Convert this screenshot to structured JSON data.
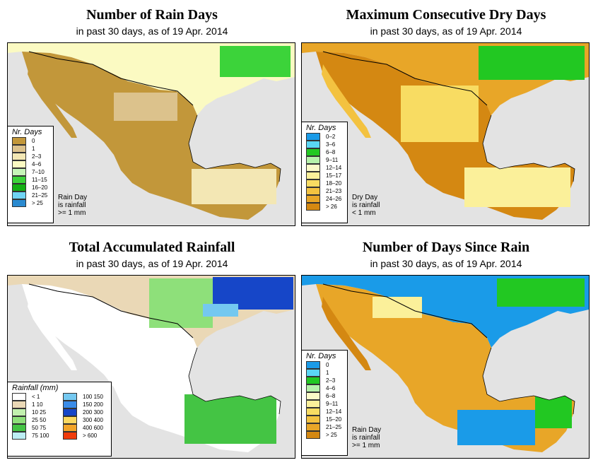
{
  "panels": [
    {
      "title": "Number of Rain Days",
      "subtitle": "in past 30 days, as of  19 Apr. 2014",
      "legend_title": "Nr. Days",
      "legend": [
        {
          "label": "0",
          "color": "#c2973a"
        },
        {
          "label": "1",
          "color": "#dcc28c"
        },
        {
          "label": "2–3",
          "color": "#f3e7b4"
        },
        {
          "label": "4–6",
          "color": "#fbfac2"
        },
        {
          "label": "7–10",
          "color": "#c6f5b8"
        },
        {
          "label": "11–15",
          "color": "#3cd33a"
        },
        {
          "label": "16–20",
          "color": "#14b014"
        },
        {
          "label": "21–25",
          "color": "#70d4f4"
        },
        {
          "label": "> 25",
          "color": "#2a8ad0"
        }
      ],
      "note": [
        "Rain Day",
        "is rainfall",
        ">= 1 mm"
      ]
    },
    {
      "title": "Maximum Consecutive Dry Days",
      "subtitle": "in past 30 days, as of  19 Apr. 2014",
      "legend_title": "Nr. Days",
      "legend": [
        {
          "label": "0–2",
          "color": "#1a9be8"
        },
        {
          "label": "3–6",
          "color": "#5ad6f4"
        },
        {
          "label": "6–8",
          "color": "#22c822"
        },
        {
          "label": "9–11",
          "color": "#b6f2aa"
        },
        {
          "label": "12–14",
          "color": "#fbfac8"
        },
        {
          "label": "15–17",
          "color": "#fbf09a"
        },
        {
          "label": "18–20",
          "color": "#f8dc62"
        },
        {
          "label": "21–23",
          "color": "#f3c240"
        },
        {
          "label": "24–26",
          "color": "#e8a628"
        },
        {
          "label": "> 26",
          "color": "#d48812"
        }
      ],
      "note": [
        "Dry Day",
        "is rainfall",
        "< 1 mm"
      ]
    },
    {
      "title": "Total Accumulated Rainfall",
      "subtitle": "in past 30 days, as of  19 Apr. 2014",
      "legend_title": "Rainfall (mm)",
      "legend_left": [
        {
          "label": "< 1",
          "color": "#ffffff"
        },
        {
          "label": "1     10",
          "color": "#ead8b6"
        },
        {
          "label": "10    25",
          "color": "#c2f0ae"
        },
        {
          "label": "25    50",
          "color": "#8ee07a"
        },
        {
          "label": "50    75",
          "color": "#44c444"
        },
        {
          "label": "75   100",
          "color": "#bceef4"
        }
      ],
      "legend_right": [
        {
          "label": "100   150",
          "color": "#74c8f0"
        },
        {
          "label": "150   200",
          "color": "#3a8ce8"
        },
        {
          "label": "200   300",
          "color": "#1646c8"
        },
        {
          "label": "300   400",
          "color": "#fbd860"
        },
        {
          "label": "400   600",
          "color": "#f3a428"
        },
        {
          "label": "> 600",
          "color": "#f03c0c"
        }
      ]
    },
    {
      "title": "Number of Days Since Rain",
      "subtitle": "in past 30 days, as of  19 Apr. 2014",
      "legend_title": "Nr. Days",
      "legend": [
        {
          "label": "0",
          "color": "#1a9be8"
        },
        {
          "label": "1",
          "color": "#5ad6f4"
        },
        {
          "label": "2–3",
          "color": "#22c822"
        },
        {
          "label": "4–6",
          "color": "#b6f2aa"
        },
        {
          "label": "6–8",
          "color": "#fbfac8"
        },
        {
          "label": "9–11",
          "color": "#fbf09a"
        },
        {
          "label": "12–14",
          "color": "#f8dc62"
        },
        {
          "label": "15–20",
          "color": "#f3c240"
        },
        {
          "label": "21–25",
          "color": "#e8a628"
        },
        {
          "label": "> 25",
          "color": "#d48812"
        }
      ],
      "note": [
        "Rain Day",
        "is rainfall",
        ">= 1 mm"
      ]
    }
  ],
  "colors": {
    "water": "#e3e3e3",
    "border": "#000000"
  }
}
